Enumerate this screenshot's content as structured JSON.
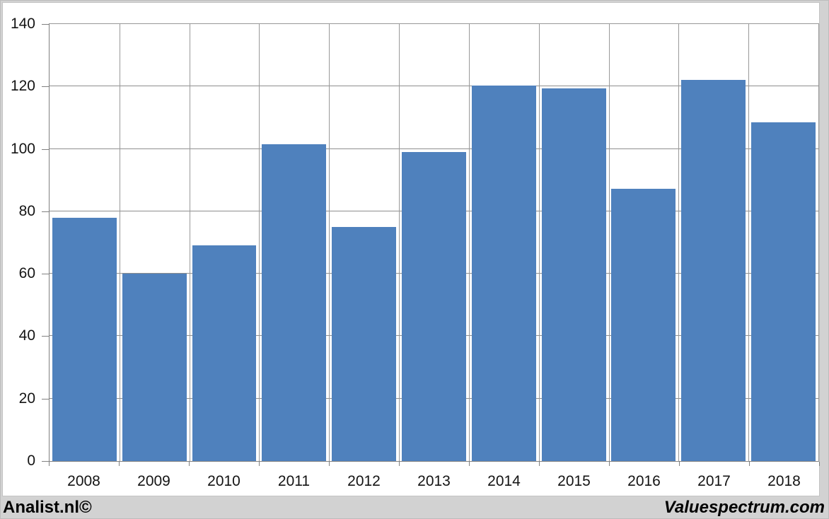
{
  "chart_data": {
    "type": "bar",
    "categories": [
      "2008",
      "2009",
      "2010",
      "2011",
      "2012",
      "2013",
      "2014",
      "2015",
      "2016",
      "2017",
      "2018"
    ],
    "values": [
      78.0,
      60.0,
      69.0,
      101.5,
      75.1,
      98.9,
      120.3,
      119.3,
      87.2,
      122.0,
      108.6
    ],
    "title": "",
    "xlabel": "",
    "ylabel": "",
    "ylim": [
      0,
      140
    ],
    "ytick_step": 20,
    "ytick_labels": [
      "0",
      "20",
      "40",
      "60",
      "80",
      "100",
      "120",
      "140"
    ],
    "grid": true,
    "legend_position": "none",
    "bar_color": "#4f81bd",
    "gridline_color": "#8e8e8e",
    "axis_color": "#808080",
    "plot_background": "#ffffff",
    "page_background": "#d2d2d2"
  },
  "footer": {
    "left_text": "Analist.nl©",
    "right_text": "Valuespectrum.com"
  }
}
